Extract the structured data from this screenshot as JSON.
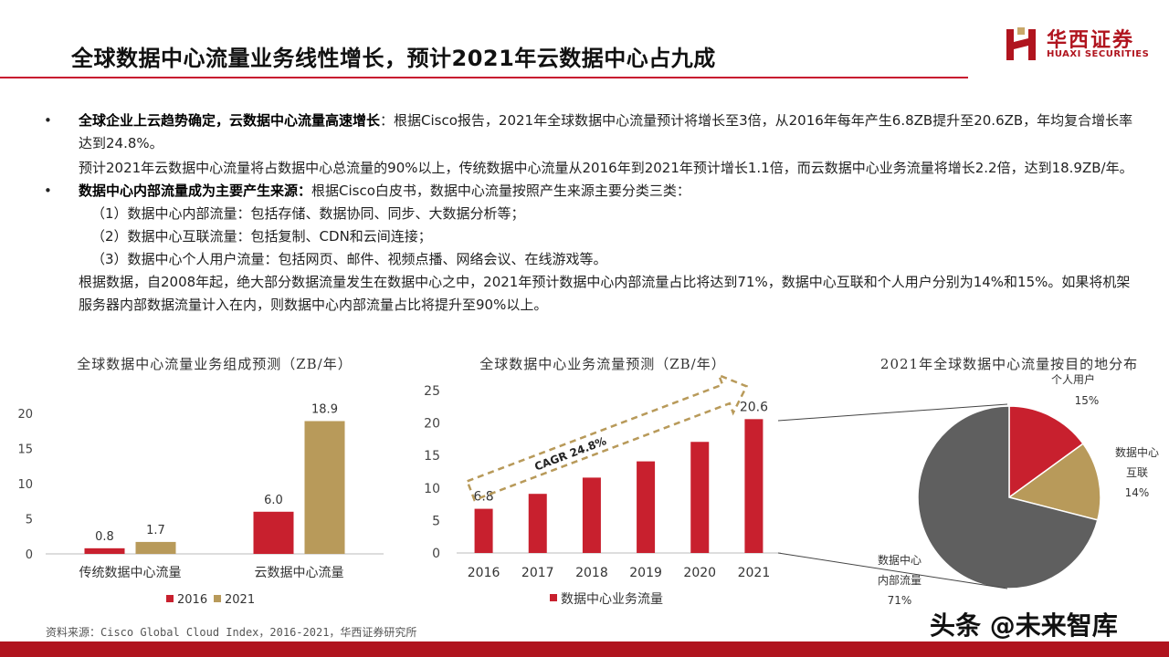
{
  "header": {
    "title": "全球数据中心流量业务线性增长，预计2021年云数据中心占九成",
    "logo_cn": "华西证券",
    "logo_en": "HUAXI SECURITIES"
  },
  "body": {
    "bullet": "•",
    "p1_bold": "全球企业上云趋势确定，云数据中心流量高速增长",
    "p1_text": "：根据Cisco报告，2021年全球数据中心流量预计将增长至3倍，从2016年每年产生6.8ZB提升至20.6ZB，年均复合增长率达到24.8%。",
    "p1b_text": "预计2021年云数据中心流量将占数据中心总流量的90%以上，传统数据中心流量从2016年到2021年预计增长1.1倍，而云数据中心业务流量将增长2.2倍，达到18.9ZB/年。",
    "p2_bold": "数据中心内部流量成为主要产生来源：",
    "p2_text": "根据Cisco白皮书，数据中心流量按照产生来源主要分类三类：",
    "item1": "（1）数据中心内部流量：包括存储、数据协同、同步、大数据分析等；",
    "item2": "（2）数据中心互联流量：包括复制、CDN和云间连接；",
    "item3": "（3）数据中心个人用户流量：包括网页、邮件、视频点播、网络会议、在线游戏等。",
    "p3_text": "根据数据，自2008年起，绝大部分数据流量发生在数据中心之中，2021年预计数据中心内部流量占比将达到71%，数据中心互联和个人用户分别为14%和15%。如果将机架服务器内部数据流量计入在内，则数据中心内部流量占比将提升至90%以上。"
  },
  "chart_data": [
    {
      "type": "bar",
      "title": "全球数据中心流量业务组成预测（ZB/年）",
      "categories": [
        "传统数据中心流量",
        "云数据中心流量"
      ],
      "series": [
        {
          "name": "2016",
          "values": [
            0.8,
            6.0
          ],
          "labels": [
            "0.8",
            "6.0"
          ],
          "color": "#c8202e"
        },
        {
          "name": "2021",
          "values": [
            1.7,
            18.9
          ],
          "labels": [
            "1.7",
            "18.9"
          ],
          "color": "#b89a5a"
        }
      ],
      "ylim": [
        0,
        20
      ],
      "yticks": [
        0,
        5,
        10,
        15,
        20
      ],
      "legend": "bottom"
    },
    {
      "type": "bar",
      "title": "全球数据中心业务流量预测（ZB/年）",
      "categories": [
        "2016",
        "2017",
        "2018",
        "2019",
        "2020",
        "2021"
      ],
      "series": [
        {
          "name": "数据中心业务流量",
          "values": [
            6.8,
            9.1,
            11.6,
            14.1,
            17.1,
            20.6
          ],
          "color": "#c8202e"
        }
      ],
      "data_labels": {
        "0": "6.8",
        "5": "20.6"
      },
      "annotation": "CAGR 24.8%",
      "ylim": [
        0,
        25
      ],
      "yticks": [
        0,
        5,
        10,
        15,
        20,
        25
      ],
      "legend": "bottom"
    },
    {
      "type": "pie",
      "title": "2021年全球数据中心流量按目的地分布",
      "slices": [
        {
          "name": "个人用户",
          "value": 15,
          "label": "15%",
          "color": "#c8202e"
        },
        {
          "name": "数据中心互联",
          "value": 14,
          "label": "14%",
          "color": "#b89a5a"
        },
        {
          "name": "数据中心内部流量",
          "value": 71,
          "label": "71%",
          "color": "#5f5f5f"
        }
      ]
    }
  ],
  "chart_text": {
    "c1_title": "全球数据中心流量业务组成预测（ZB/年）",
    "c2_title": "全球数据中心业务流量预测（ZB/年）",
    "c3_title": "2021年全球数据中心流量按目的地分布",
    "pie_label_a1": "个人用户",
    "pie_label_b1": "数据中心",
    "pie_label_b2": "互联",
    "pie_label_c1": "数据中心",
    "pie_label_c2": "内部流量"
  },
  "footer": {
    "source": "资料来源：Cisco Global Cloud Index，2016-2021，华西证券研究所",
    "watermark": "头条 @未来智库"
  },
  "colors": {
    "brand": "#b0141e",
    "red": "#c8202e",
    "gold": "#b89a5a",
    "grey": "#5f5f5f"
  }
}
